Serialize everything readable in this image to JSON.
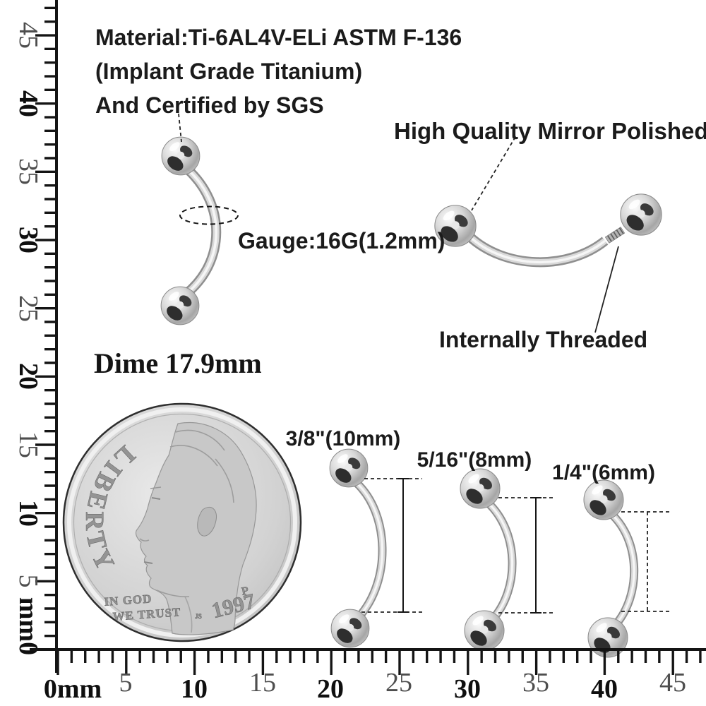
{
  "annotations": {
    "material_line1": "Material:Ti-6AL4V-ELi ASTM F-136",
    "material_line2": "(Implant Grade Titanium)",
    "material_line3": "And Certified by SGS",
    "mirror_polished": "High Quality Mirror Polished",
    "gauge": "Gauge:16G(1.2mm)",
    "internally_threaded": "Internally Threaded",
    "dime_caption": "Dime 17.9mm"
  },
  "sizes": {
    "large": "3/8\"(10mm)",
    "medium": "5/16\"(8mm)",
    "small": "1/4\"(6mm)"
  },
  "coin": {
    "legend": "LIBERTY",
    "motto_line1": "IN GOD",
    "motto_line2": "WE TRUST",
    "year": "1997",
    "mint_mark": "P",
    "designer_initials": "JS"
  },
  "rulers": {
    "unit": "mm",
    "left": {
      "labels": [
        "45",
        "40",
        "35",
        "30",
        "25",
        "20",
        "15",
        "10",
        "5",
        "mm0"
      ]
    },
    "bottom": {
      "labels": [
        "0mm",
        "5",
        "10",
        "15",
        "20",
        "25",
        "30",
        "35",
        "40",
        "45"
      ]
    }
  },
  "colors": {
    "ink": "#141414",
    "gray_label": "#4e4e4e",
    "metal_light": "#fafafa",
    "metal_mid": "#c0c0c0",
    "metal_dark": "#8f8f8f"
  }
}
